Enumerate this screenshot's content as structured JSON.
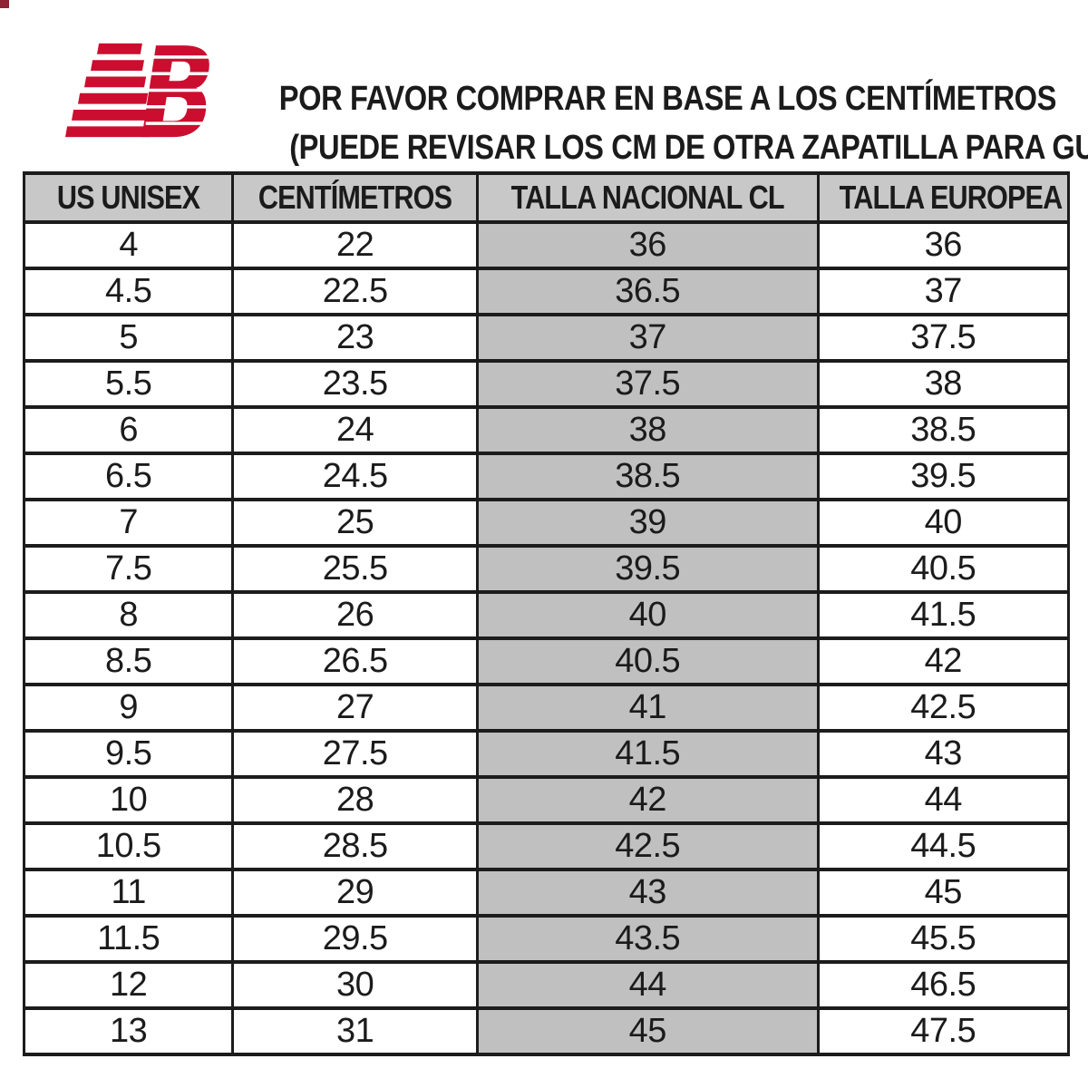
{
  "logo": {
    "brand": "New Balance",
    "color": "#cb0e2f"
  },
  "header": {
    "line1": "POR FAVOR COMPRAR EN BASE A LOS CENTÍMETROS",
    "line2": "(PUEDE REVISAR LOS CM DE OTRA ZAPATILLA PARA GUIARSE)"
  },
  "table": {
    "columns": [
      "US UNISEX",
      "CENTÍMETROS",
      "TALLA NACIONAL CL",
      "TALLA EUROPEA"
    ],
    "highlight_column_index": 2,
    "header_bg": "#c8c8c8",
    "highlight_bg": "#c0c0c0",
    "rows": [
      [
        "4",
        "22",
        "36",
        "36"
      ],
      [
        "4.5",
        "22.5",
        "36.5",
        "37"
      ],
      [
        "5",
        "23",
        "37",
        "37.5"
      ],
      [
        "5.5",
        "23.5",
        "37.5",
        "38"
      ],
      [
        "6",
        "24",
        "38",
        "38.5"
      ],
      [
        "6.5",
        "24.5",
        "38.5",
        "39.5"
      ],
      [
        "7",
        "25",
        "39",
        "40"
      ],
      [
        "7.5",
        "25.5",
        "39.5",
        "40.5"
      ],
      [
        "8",
        "26",
        "40",
        "41.5"
      ],
      [
        "8.5",
        "26.5",
        "40.5",
        "42"
      ],
      [
        "9",
        "27",
        "41",
        "42.5"
      ],
      [
        "9.5",
        "27.5",
        "41.5",
        "43"
      ],
      [
        "10",
        "28",
        "42",
        "44"
      ],
      [
        "10.5",
        "28.5",
        "42.5",
        "44.5"
      ],
      [
        "11",
        "29",
        "43",
        "45"
      ],
      [
        "11.5",
        "29.5",
        "43.5",
        "45.5"
      ],
      [
        "12",
        "30",
        "44",
        "46.5"
      ],
      [
        "13",
        "31",
        "45",
        "47.5"
      ]
    ]
  },
  "chart_data": {
    "type": "table",
    "title": "POR FAVOR COMPRAR EN BASE A LOS CENTÍMETROS (PUEDE REVISAR LOS CM DE OTRA ZAPATILLA PARA GUIARSE)",
    "columns": [
      "US UNISEX",
      "CENTÍMETROS",
      "TALLA NACIONAL CL",
      "TALLA EUROPEA"
    ],
    "rows": [
      [
        "4",
        "22",
        "36",
        "36"
      ],
      [
        "4.5",
        "22.5",
        "36.5",
        "37"
      ],
      [
        "5",
        "23",
        "37",
        "37.5"
      ],
      [
        "5.5",
        "23.5",
        "37.5",
        "38"
      ],
      [
        "6",
        "24",
        "38",
        "38.5"
      ],
      [
        "6.5",
        "24.5",
        "38.5",
        "39.5"
      ],
      [
        "7",
        "25",
        "39",
        "40"
      ],
      [
        "7.5",
        "25.5",
        "39.5",
        "40.5"
      ],
      [
        "8",
        "26",
        "40",
        "41.5"
      ],
      [
        "8.5",
        "26.5",
        "40.5",
        "42"
      ],
      [
        "9",
        "27",
        "41",
        "42.5"
      ],
      [
        "9.5",
        "27.5",
        "41.5",
        "43"
      ],
      [
        "10",
        "28",
        "42",
        "44"
      ],
      [
        "10.5",
        "28.5",
        "42.5",
        "44.5"
      ],
      [
        "11",
        "29",
        "43",
        "45"
      ],
      [
        "11.5",
        "29.5",
        "43.5",
        "45.5"
      ],
      [
        "12",
        "30",
        "44",
        "46.5"
      ],
      [
        "13",
        "31",
        "45",
        "47.5"
      ]
    ],
    "layout": {
      "highlighted_column": "TALLA NACIONAL CL",
      "grid": true,
      "header_shaded": true
    }
  }
}
